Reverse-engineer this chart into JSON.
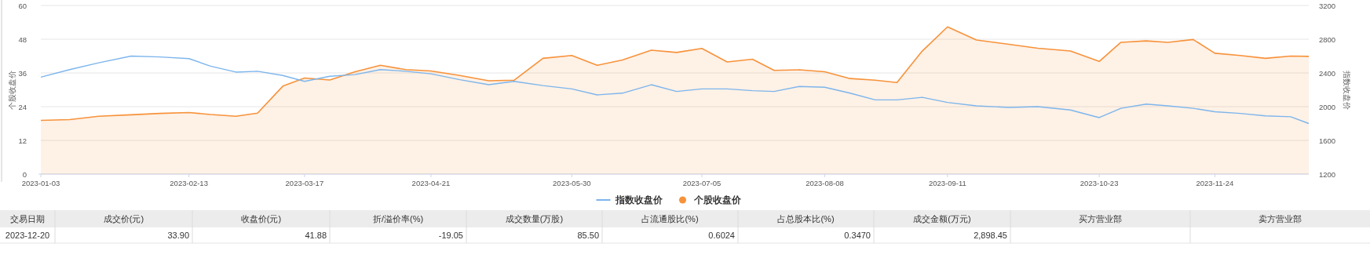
{
  "chart_data": {
    "type": "line",
    "x": [
      "2023-01-03",
      "2023-01-11",
      "2023-01-19",
      "2023-01-28",
      "2023-02-05",
      "2023-02-13",
      "2023-02-19",
      "2023-02-26",
      "2023-03-04",
      "2023-03-11",
      "2023-03-17",
      "2023-03-24",
      "2023-03-31",
      "2023-04-07",
      "2023-04-14",
      "2023-04-21",
      "2023-04-29",
      "2023-05-07",
      "2023-05-14",
      "2023-05-22",
      "2023-05-30",
      "2023-06-06",
      "2023-06-13",
      "2023-06-21",
      "2023-06-28",
      "2023-07-05",
      "2023-07-12",
      "2023-07-19",
      "2023-07-25",
      "2023-08-01",
      "2023-08-08",
      "2023-08-15",
      "2023-08-22",
      "2023-08-28",
      "2023-09-04",
      "2023-09-11",
      "2023-09-19",
      "2023-09-28",
      "2023-10-06",
      "2023-10-15",
      "2023-10-23",
      "2023-10-29",
      "2023-11-05",
      "2023-11-11",
      "2023-11-18",
      "2023-11-24",
      "2023-12-01",
      "2023-12-08",
      "2023-12-15",
      "2023-12-20"
    ],
    "xlim": [
      "2023-01-03",
      "2023-12-20"
    ],
    "xticks": [
      "2023-01-03",
      "2023-02-13",
      "2023-03-17",
      "2023-04-21",
      "2023-05-30",
      "2023-07-05",
      "2023-08-08",
      "2023-09-11",
      "2023-10-23",
      "2023-11-24"
    ],
    "ylabel": "个股收盘价",
    "y2label": "指数收盘价",
    "ylim": [
      0,
      60
    ],
    "yticks": [
      0,
      12,
      24,
      36,
      48,
      60
    ],
    "y2lim": [
      1200,
      3200
    ],
    "y2ticks": [
      1200,
      1600,
      2000,
      2400,
      2800,
      3200
    ],
    "grid": "y",
    "legend": "bottom",
    "marker": "none",
    "series": [
      {
        "name": "指数收盘价",
        "type": "line",
        "axis": "y2",
        "color": "#7cb5ec",
        "values": [
          2350,
          2440,
          2520,
          2600,
          2590,
          2570,
          2480,
          2410,
          2420,
          2370,
          2300,
          2360,
          2380,
          2440,
          2420,
          2390,
          2320,
          2260,
          2300,
          2250,
          2210,
          2140,
          2160,
          2260,
          2180,
          2210,
          2210,
          2190,
          2180,
          2240,
          2230,
          2160,
          2080,
          2080,
          2110,
          2050,
          2010,
          1990,
          2000,
          1960,
          1870,
          1980,
          2030,
          2010,
          1980,
          1940,
          1920,
          1890,
          1880,
          1800
        ]
      },
      {
        "name": "个股收盘价",
        "type": "area",
        "axis": "y",
        "color": "#f7923a",
        "values": [
          19.1,
          19.4,
          20.6,
          21.1,
          21.6,
          21.9,
          21.2,
          20.6,
          21.7,
          31.3,
          34.2,
          33.5,
          36.4,
          38.7,
          37.2,
          36.7,
          35.1,
          33.2,
          33.4,
          41.2,
          42.2,
          38.7,
          40.6,
          44.1,
          43.3,
          44.7,
          39.9,
          40.9,
          36.9,
          37.1,
          36.4,
          34.0,
          33.4,
          32.6,
          43.8,
          52.4,
          47.7,
          46.2,
          44.8,
          43.8,
          40.1,
          46.9,
          47.4,
          46.9,
          47.9,
          43.0,
          42.2,
          41.2,
          42.0,
          41.9
        ]
      }
    ],
    "annotations": [
      "交易日期",
      "成交价(元)",
      "收盘价(元)",
      "折/溢价率(%)",
      "成交数量(万股)",
      "占流通股比(%)",
      "占总股本比(%)",
      "成交金额(万元)",
      "买方营业部",
      "卖方营业部",
      "2023-12-20",
      "33.90",
      "41.88",
      "-19.05",
      "85.50",
      "0.6024",
      "0.3470",
      "2,898.45"
    ]
  }
}
